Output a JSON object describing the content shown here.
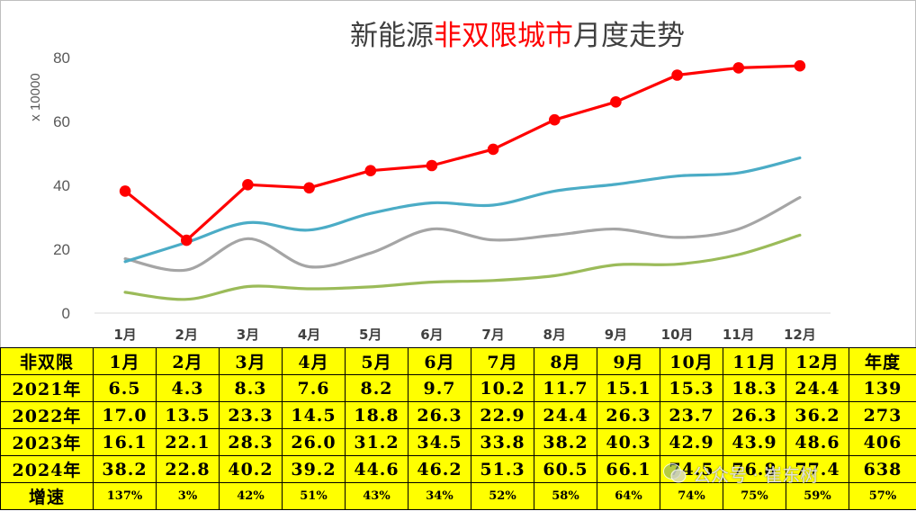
{
  "chart_data": {
    "type": "line",
    "title": {
      "pre": "新能源",
      "highlight": "非双限城市",
      "post": "月度走势"
    },
    "title_color": "#404040",
    "title_highlight_color": "#FF0000",
    "ylabel": "x 10000",
    "categories": [
      "1月",
      "2月",
      "3月",
      "4月",
      "5月",
      "6月",
      "7月",
      "8月",
      "9月",
      "10月",
      "11月",
      "12月"
    ],
    "ylim": [
      0,
      80
    ],
    "yticks": [
      0,
      20,
      40,
      60,
      80
    ],
    "grid": false,
    "series": [
      {
        "name": "2021年",
        "color": "#9BBB59",
        "line_style": "smooth",
        "markers": false,
        "values": [
          6.5,
          4.3,
          8.3,
          7.6,
          8.2,
          9.7,
          10.2,
          11.7,
          15.1,
          15.3,
          18.3,
          24.4
        ]
      },
      {
        "name": "2022年",
        "color": "#A5A5A5",
        "line_style": "smooth",
        "markers": false,
        "values": [
          17.0,
          13.5,
          23.3,
          14.5,
          18.8,
          26.3,
          22.9,
          24.4,
          26.3,
          23.7,
          26.3,
          36.2
        ]
      },
      {
        "name": "2023年",
        "color": "#4BACC6",
        "line_style": "smooth",
        "markers": false,
        "values": [
          16.1,
          22.1,
          28.3,
          26.0,
          31.2,
          34.5,
          33.8,
          38.2,
          40.3,
          42.9,
          43.9,
          48.6
        ]
      },
      {
        "name": "2024年",
        "color": "#FF0000",
        "line_style": "straight",
        "markers": true,
        "values": [
          38.2,
          22.8,
          40.2,
          39.2,
          44.6,
          46.2,
          51.3,
          60.5,
          66.1,
          74.5,
          76.8,
          77.4
        ]
      }
    ]
  },
  "table": {
    "header": [
      "非双限",
      "1月",
      "2月",
      "3月",
      "4月",
      "5月",
      "6月",
      "7月",
      "8月",
      "9月",
      "10月",
      "11月",
      "12月",
      "年度"
    ],
    "rows": [
      {
        "cells": [
          "6.5",
          "4.3",
          "8.3",
          "7.6",
          "8.2",
          "9.7",
          "10.2",
          "11.7",
          "15.1",
          "15.3",
          "18.3",
          "24.4",
          "139"
        ]
      },
      {
        "cells": [
          "17.0",
          "13.5",
          "23.3",
          "14.5",
          "18.8",
          "26.3",
          "22.9",
          "24.4",
          "26.3",
          "23.7",
          "26.3",
          "36.2",
          "273"
        ]
      },
      {
        "cells": [
          "16.1",
          "22.1",
          "28.3",
          "26.0",
          "31.2",
          "34.5",
          "33.8",
          "38.2",
          "40.3",
          "42.9",
          "43.9",
          "48.6",
          "406"
        ]
      },
      {
        "cells": [
          "38.2",
          "22.8",
          "40.2",
          "39.2",
          "44.6",
          "46.2",
          "51.3",
          "60.5",
          "66.1",
          "74.5",
          "76.8",
          "77.4",
          "638"
        ]
      }
    ],
    "growth": {
      "label": "增速",
      "cells": [
        "137%",
        "3%",
        "42%",
        "51%",
        "43%",
        "34%",
        "52%",
        "58%",
        "64%",
        "74%",
        "75%",
        "59%",
        "57%"
      ]
    },
    "background_color": "#FFFF00"
  },
  "watermark": {
    "text": "公众号 · 崔东树",
    "icon": "wechat-icon"
  }
}
